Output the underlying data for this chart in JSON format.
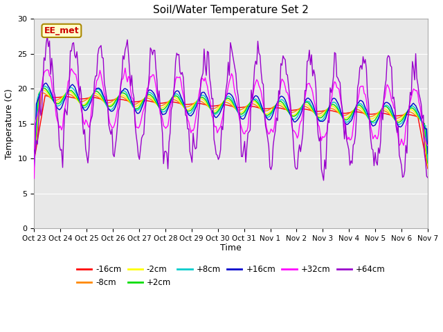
{
  "title": "Soil/Water Temperature Set 2",
  "xlabel": "Time",
  "ylabel": "Temperature (C)",
  "ylim": [
    0,
    30
  ],
  "yticks": [
    0,
    5,
    10,
    15,
    20,
    25,
    30
  ],
  "fig_facecolor": "#ffffff",
  "plot_bg_color": "#e8e8e8",
  "series": [
    {
      "label": "-16cm",
      "color": "#ff0000"
    },
    {
      "label": "-8cm",
      "color": "#ff8800"
    },
    {
      "label": "-2cm",
      "color": "#ffff00"
    },
    {
      "label": "+2cm",
      "color": "#00dd00"
    },
    {
      "label": "+8cm",
      "color": "#00cccc"
    },
    {
      "label": "+16cm",
      "color": "#0000cc"
    },
    {
      "label": "+32cm",
      "color": "#ff00ff"
    },
    {
      "label": "+64cm",
      "color": "#9900cc"
    }
  ],
  "watermark": "EE_met",
  "watermark_color": "#cc0000",
  "watermark_bg": "#ffffcc",
  "watermark_border": "#aa8800",
  "tick_labels": [
    "Oct 23",
    "Oct 24",
    "Oct 25",
    "Oct 26",
    "Oct 27",
    "Oct 28",
    "Oct 29",
    "Oct 30",
    "Oct 31",
    "Nov 1",
    "Nov 2",
    "Nov 3",
    "Nov 4",
    "Nov 5",
    "Nov 6",
    "Nov 7"
  ]
}
